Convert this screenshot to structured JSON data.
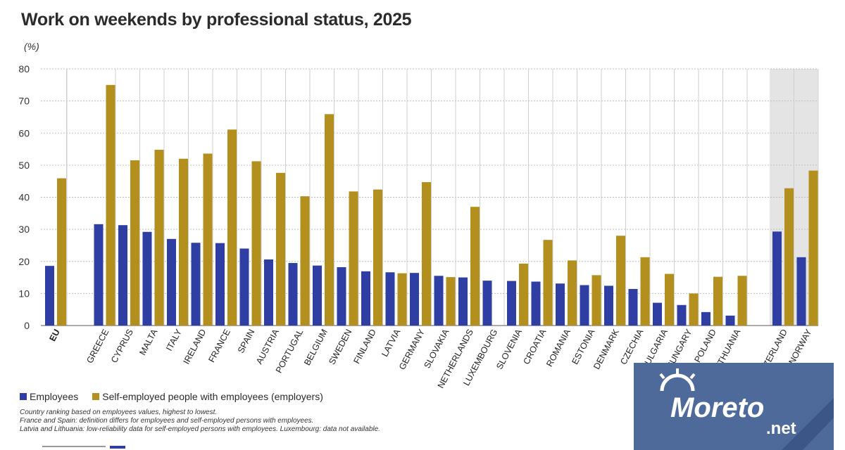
{
  "title": "Work on weekends by professional status, 2025",
  "unit": "(%)",
  "colors": {
    "employees": "#2e3ea3",
    "employers": "#b38f1e",
    "grid": "#bdbdbd",
    "highlight_bg": "#e4e4e4"
  },
  "legend": {
    "employees": "Employees",
    "employers": "Self-employed people with employees (employers)"
  },
  "notes": [
    "Country ranking based on employees values, highest to lowest.",
    "France and Spain: definition differs for employees and self-employed persons with employees.",
    "Latvia and Lithuania: low-reliability data for self-employed persons with employees. Luxembourg: data not available."
  ],
  "watermark": {
    "text": "Moreto",
    "suffix": ".net"
  },
  "chart_data": {
    "type": "bar",
    "categories": [
      "EU",
      "GREECE",
      "CYPRUS",
      "MALTA",
      "ITALY",
      "IRELAND",
      "FRANCE",
      "SPAIN",
      "AUSTRIA",
      "PORTUGAL",
      "BELGIUM",
      "SWEDEN",
      "FINLAND",
      "LATVIA",
      "GERMANY",
      "SLOVAKIA",
      "NETHERLANDS",
      "LUXEMBOURG",
      "SLOVENIA",
      "CROATIA",
      "ROMANIA",
      "ESTONIA",
      "DENMARK",
      "CZECHIA",
      "BULGARIA",
      "HUNGARY",
      "POLAND",
      "LITHUANIA",
      "SWITZERLAND",
      "NORWAY"
    ],
    "series": [
      {
        "name": "Employees",
        "values": [
          18.6,
          31.6,
          31.3,
          29.2,
          27.0,
          25.8,
          25.7,
          24.0,
          20.6,
          19.5,
          18.7,
          18.2,
          16.9,
          16.6,
          16.4,
          15.5,
          15.0,
          14.0,
          13.9,
          13.7,
          13.1,
          12.6,
          12.4,
          11.4,
          7.1,
          6.4,
          4.2,
          3.1,
          29.3,
          21.3
        ]
      },
      {
        "name": "Self-employed people with employees (employers)",
        "values": [
          45.9,
          75.0,
          51.5,
          54.8,
          52.0,
          53.6,
          61.1,
          51.2,
          47.6,
          40.3,
          65.9,
          41.8,
          42.4,
          16.3,
          44.7,
          15.1,
          37.0,
          null,
          19.3,
          26.7,
          20.3,
          15.7,
          28.0,
          21.3,
          16.1,
          10.0,
          15.2,
          15.5,
          42.8,
          48.3
        ]
      }
    ],
    "ylim": [
      0,
      80
    ],
    "yticks": [
      0,
      10,
      20,
      30,
      40,
      50,
      60,
      70,
      80
    ],
    "grid": true,
    "highlighted": [
      "SWITZERLAND",
      "NORWAY"
    ]
  }
}
